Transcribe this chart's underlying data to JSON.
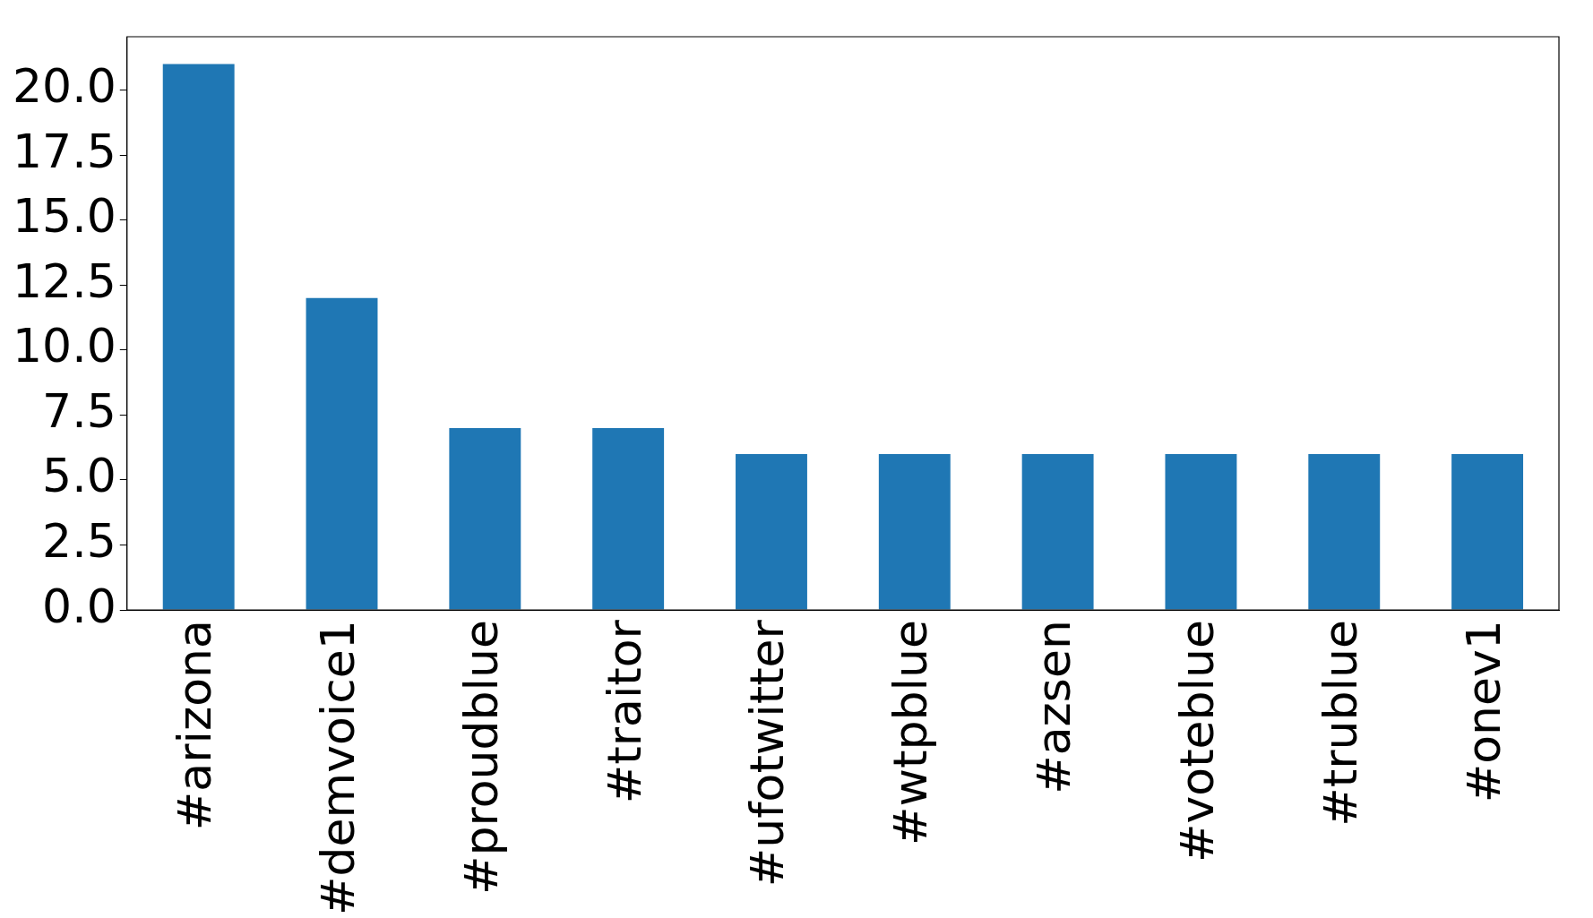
{
  "chart_data": {
    "type": "bar",
    "categories": [
      "#arizona",
      "#demvoice1",
      "#proudblue",
      "#traitor",
      "#ufotwitter",
      "#wtpblue",
      "#azsen",
      "#voteblue",
      "#trublue",
      "#onev1"
    ],
    "values": [
      21,
      12,
      7,
      7,
      6,
      6,
      6,
      6,
      6,
      6
    ],
    "color": "#1f77b4",
    "ylim": [
      0,
      22.05
    ],
    "yticks": [
      {
        "value": 0,
        "label": "0.0"
      },
      {
        "value": 2.5,
        "label": "2.5"
      },
      {
        "value": 5,
        "label": "5.0"
      },
      {
        "value": 7.5,
        "label": "7.5"
      },
      {
        "value": 10,
        "label": "10.0"
      },
      {
        "value": 12.5,
        "label": "12.5"
      },
      {
        "value": 15,
        "label": "15.0"
      },
      {
        "value": 17.5,
        "label": "17.5"
      },
      {
        "value": 20,
        "label": "20.0"
      }
    ],
    "grid": false,
    "legend": false
  }
}
